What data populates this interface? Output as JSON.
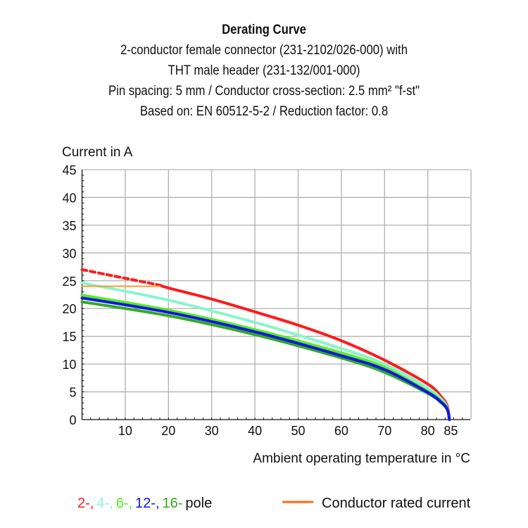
{
  "chart_data": {
    "type": "line",
    "title": "Derating Curve",
    "subtitle": [
      "2-conductor female connector (231-2102/026-000) with",
      "THT male header (231-132/001-000)",
      "Pin spacing: 5 mm / Conductor cross-section: 2.5 mm² \"f-st\"",
      "Based on: EN 60512-5-2 / Reduction factor: 0.8"
    ],
    "ylabel": "Current in A",
    "xlabel": "Ambient operating temperature in °C",
    "xlim": [
      0,
      90
    ],
    "ylim": [
      0,
      45
    ],
    "xticks": [
      10,
      20,
      30,
      40,
      50,
      60,
      70,
      80,
      85
    ],
    "yticks": [
      0,
      5,
      10,
      15,
      20,
      25,
      30,
      35,
      40,
      45
    ],
    "grid": true,
    "series": [
      {
        "name": "2-",
        "color": "#ff1a1a",
        "x": [
          0,
          18
        ],
        "y": [
          27,
          24.2
        ],
        "style": "dashed"
      },
      {
        "name": "2-",
        "color": "#ff1a1a",
        "x": [
          18,
          20,
          30,
          40,
          50,
          60,
          70,
          80,
          83,
          84.5,
          85
        ],
        "y": [
          24.2,
          23.7,
          21.7,
          19.4,
          17,
          14.2,
          10.7,
          6.4,
          4.2,
          2.5,
          0
        ]
      },
      {
        "name": "4-",
        "color": "#88f5cc",
        "x": [
          0,
          20,
          40,
          50,
          60,
          70,
          80,
          83,
          84.5,
          85
        ],
        "y": [
          24.6,
          21.5,
          17.5,
          15.2,
          12.8,
          10,
          5.7,
          3.8,
          2.2,
          0
        ]
      },
      {
        "name": "6-",
        "color": "#55ee22",
        "x": [
          0,
          20,
          40,
          60,
          70,
          80,
          83,
          84.5,
          85
        ],
        "y": [
          22.4,
          19.7,
          16.2,
          12,
          9.4,
          5.1,
          3.4,
          2,
          0
        ]
      },
      {
        "name": "16-",
        "color": "#33aa22",
        "x": [
          0,
          20,
          40,
          60,
          70,
          80,
          83,
          84.5,
          85
        ],
        "y": [
          21.2,
          18.7,
          15.3,
          11.1,
          8.5,
          4.7,
          3.1,
          1.8,
          0
        ]
      },
      {
        "name": "12-",
        "color": "#1414e6",
        "x": [
          0,
          20,
          40,
          60,
          70,
          80,
          83,
          84.5,
          85
        ],
        "y": [
          21.9,
          19.3,
          15.8,
          11.5,
          9,
          4.9,
          3.2,
          1.9,
          0
        ]
      },
      {
        "name": "Conductor rated current",
        "color": "#ff9933",
        "x": [
          0,
          18
        ],
        "y": [
          24,
          24
        ]
      }
    ],
    "legend": {
      "placement": "bottom",
      "poles": [
        {
          "label": "2-,",
          "color": "#ff1a1a"
        },
        {
          "label": "4-,",
          "color": "#88f5cc"
        },
        {
          "label": "6-,",
          "color": "#55ee22"
        },
        {
          "label": "12-,",
          "color": "#1414e6"
        },
        {
          "label": "16-",
          "color": "#33aa22"
        }
      ],
      "poles_suffix": "pole",
      "rated_label": "Conductor rated current",
      "rated_color": "#ff6a10"
    }
  }
}
